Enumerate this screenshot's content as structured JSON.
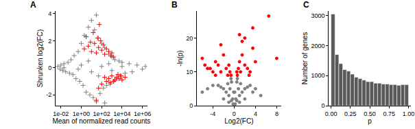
{
  "chart_data": [
    {
      "type": "scatter",
      "title": "A",
      "x_label": "Mean of normalized read counts",
      "y_label": "Shrunken log2(FC)",
      "log": "x",
      "grid": false,
      "xlim": [
        0.003,
        3000000
      ],
      "xticks": [
        {
          "value": 0.01,
          "label": "1e-02"
        },
        {
          "value": 1,
          "label": "1e+00"
        },
        {
          "value": 100,
          "label": "1e+02"
        },
        {
          "value": 10000,
          "label": "1e+04"
        },
        {
          "value": 1000000,
          "label": "1e+06"
        }
      ],
      "ylim": [
        -2.8,
        4.2
      ],
      "yticks": [
        -2,
        0,
        2,
        4
      ],
      "series": [
        {
          "color": "#808080",
          "marker": "cross",
          "x": [
            0.005,
            0.008,
            0.01,
            0.015,
            0.02,
            0.03,
            0.05,
            0.07,
            0.1,
            0.15,
            0.2,
            0.3,
            0.5,
            0.7,
            1,
            1.5,
            2,
            3,
            5,
            7,
            10,
            15,
            20,
            30,
            50,
            70,
            100,
            150,
            200,
            300,
            500,
            700,
            1000,
            1500,
            2000,
            3000,
            5000,
            7000,
            10000,
            20000,
            50000,
            100000,
            300000,
            1000000,
            2000000,
            0.02,
            1,
            10,
            100,
            1000,
            10000,
            5,
            50,
            500,
            0.5,
            30,
            200
          ],
          "values": [
            0.1,
            -0.1,
            0.2,
            -0.2,
            0.3,
            -0.3,
            0.4,
            -0.4,
            0.6,
            -0.5,
            0.9,
            -0.8,
            1.2,
            -1.0,
            1.8,
            -1.3,
            2.4,
            -1.8,
            3.0,
            -2.0,
            3.5,
            -2.2,
            2.8,
            -2.5,
            2.2,
            -1.9,
            1.8,
            -1.5,
            1.5,
            -1.3,
            1.0,
            -1.2,
            0.8,
            -1.0,
            0.6,
            -0.8,
            0.5,
            -0.6,
            0.4,
            -0.4,
            0.3,
            -0.3,
            0.2,
            -0.1,
            0.1,
            0,
            0.2,
            -0.3,
            0.1,
            -0.2,
            0.1,
            0.5,
            -0.6,
            0.3,
            -0.1,
            3.9,
            -2.6
          ]
        },
        {
          "color": "#ff0000",
          "marker": "cross",
          "x": [
            2,
            5,
            10,
            20,
            30,
            50,
            80,
            100,
            150,
            200,
            300,
            500,
            800,
            1000,
            1500,
            3,
            15,
            40,
            60,
            8,
            200,
            500,
            1000,
            2000,
            3000,
            5000,
            8000,
            10000,
            20000,
            300,
            100,
            50,
            30,
            700,
            4000,
            1500
          ],
          "values": [
            1.4,
            1.6,
            1.2,
            1.8,
            1.1,
            1.5,
            2.0,
            1.3,
            1.7,
            1.0,
            1.4,
            1.2,
            0.9,
            1.1,
            0.8,
            2.3,
            2.6,
            2.2,
            3.2,
            1.9,
            -0.7,
            -0.8,
            -0.6,
            -0.9,
            -0.7,
            -0.8,
            -0.6,
            -0.9,
            -0.7,
            -1.0,
            -1.2,
            -1.5,
            -2.4,
            -1.1,
            -0.5,
            -1.0
          ]
        }
      ]
    },
    {
      "type": "scatter",
      "title": "B",
      "x_label": "Log2(FC)",
      "y_label": "-ln(p)",
      "grid": false,
      "xlim": [
        -7,
        8.8
      ],
      "xticks": [
        -4,
        0,
        4,
        8
      ],
      "ylim": [
        0,
        28
      ],
      "yticks": [
        0,
        10,
        20
      ],
      "series": [
        {
          "color": "#808080",
          "marker": "circle",
          "x": [
            0,
            0.2,
            -0.2,
            0.5,
            -0.5,
            1,
            -1,
            1.5,
            -1.5,
            2,
            -2,
            2.5,
            -2.5,
            3,
            -3,
            -4,
            4,
            0.3,
            -0.3,
            0.8,
            -0.8,
            1.2,
            -1.2,
            0.5,
            -0.5,
            -5,
            3.5,
            1,
            -1,
            2,
            -2,
            0.1,
            -0.1,
            0.6,
            -0.6,
            -6,
            5
          ],
          "values": [
            0,
            0.5,
            0.5,
            1.5,
            1.5,
            3,
            3,
            4,
            4,
            5,
            5,
            5.5,
            5.5,
            6,
            6,
            6,
            5,
            2,
            2,
            5,
            5,
            6.5,
            6.5,
            7,
            7,
            5,
            4,
            1,
            1,
            2,
            2,
            4,
            4,
            8,
            8,
            4,
            3
          ]
        },
        {
          "color": "#ff0000",
          "marker": "circle",
          "x": [
            -6,
            -5.5,
            -5,
            -4,
            -3.5,
            -3,
            -2.5,
            -2,
            -1.5,
            -1.2,
            -1,
            -0.8,
            -0.6,
            0.6,
            0.8,
            1,
            1.2,
            1.5,
            2,
            2.5,
            3,
            3.5,
            3.5,
            2,
            1.5,
            4,
            -2.5,
            6.5,
            8,
            1,
            0.5,
            -4.5,
            2.8,
            -3.5
          ],
          "values": [
            14,
            12,
            11,
            10,
            13,
            12,
            10,
            15,
            11,
            9,
            12,
            10,
            9,
            9,
            11,
            13,
            10,
            15,
            12,
            11,
            10,
            17,
            23,
            20,
            19,
            13,
            18,
            26.5,
            14,
            21,
            10,
            11,
            9,
            9
          ]
        }
      ]
    },
    {
      "type": "histogram",
      "title": "C",
      "x_label": "p",
      "y_label": "Number of genes",
      "grid": false,
      "color": "#595959",
      "bins": [
        0,
        0.05,
        0.1,
        0.15,
        0.2,
        0.25,
        0.3,
        0.35,
        0.4,
        0.45,
        0.5,
        0.55,
        0.6,
        0.65,
        0.7,
        0.75,
        0.8,
        0.85,
        0.9,
        0.95,
        1
      ],
      "values": [
        3050,
        1700,
        1400,
        1200,
        1150,
        1050,
        950,
        900,
        850,
        800,
        800,
        750,
        750,
        720,
        720,
        700,
        700,
        680,
        700,
        700
      ],
      "xlim": [
        -0.03,
        1.03
      ],
      "xticks": [
        {
          "value": 0,
          "label": "0.00"
        },
        {
          "value": 0.25,
          "label": "0.25"
        },
        {
          "value": 0.5,
          "label": "0.50"
        },
        {
          "value": 0.75,
          "label": "0.75"
        },
        {
          "value": 1,
          "label": "1.00"
        }
      ],
      "ylim": [
        0,
        3150
      ],
      "yticks": [
        0,
        1000,
        2000,
        3000
      ]
    }
  ]
}
